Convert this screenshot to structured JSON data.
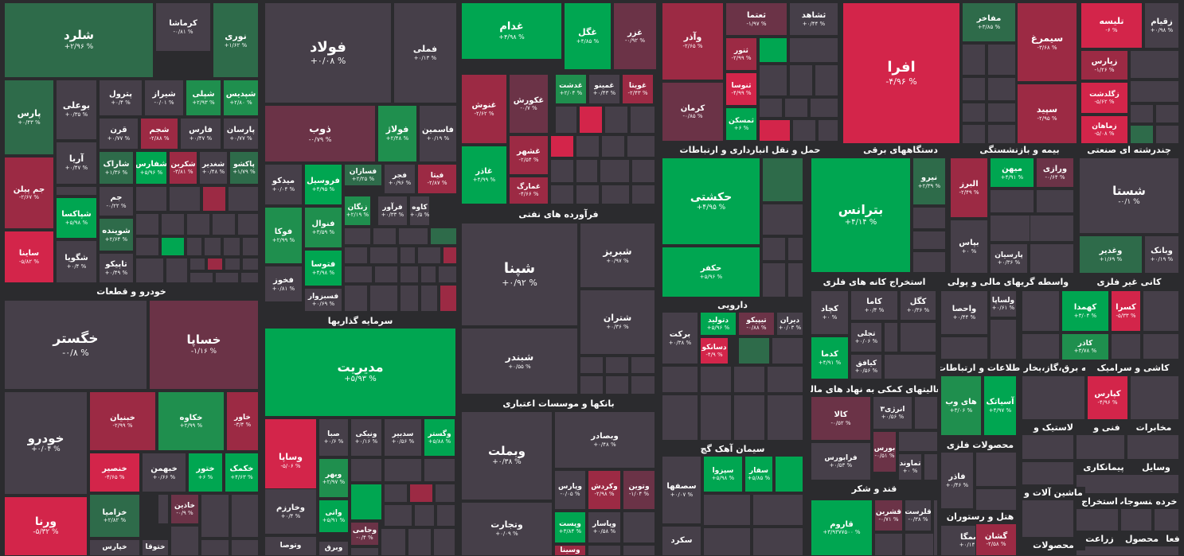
{
  "colors": {
    "neutral": "#463f49",
    "green_strong": "#00a651",
    "green_mid": "#1f8f4e",
    "green_dark": "#2e6b4a",
    "red_strong": "#d3254a",
    "red_mid": "#9c2a44",
    "red_dark": "#6b3347",
    "background": "#2b2b2e"
  },
  "sectors": [
    "خودرو و قطعات",
    "سرمایه گذاریها",
    "فرآورده های نفتی",
    "بانکها و موسسات اعتباری",
    "حمل و نقل انبارداری و ارتباطات",
    "دستگاههای برقی",
    "بیمه و بازنشستگی",
    "چندرشته ای صنعتی",
    "استخراج کانه های فلزی",
    "واسطه گریهای مالی و پولی",
    "کانی غیر فلزی",
    "دارویی",
    "فعالیتهای کمکی به نهاد های مالی",
    "اطلاعات و ارتباطات",
    "عرضه برق،گاز،بخار و آب",
    "کاشی و سرامیک",
    "سیمان آهک گچ",
    "محصولات فلزی",
    "قند و شکر",
    "هتل و رستوران",
    "لاستیک و",
    "فنی و",
    "مخابرات",
    "پیمانکاری",
    "وسایل",
    "ماشین آلات و",
    "استخراج",
    "منسوجات",
    "خرده",
    "محصولات",
    "فعا",
    "محصول",
    "زراعت"
  ],
  "stocks": [
    {
      "name": "شلرد",
      "pct": "+۲/۹۶ %",
      "tone": "green_dark"
    },
    {
      "name": "کرماشا",
      "pct": "-۰/۸۱ %",
      "tone": "neutral"
    },
    {
      "name": "نوری",
      "pct": "+۱/۶۲ %",
      "tone": "green_dark"
    },
    {
      "name": "بوعلی",
      "pct": "+۰/۳۵ %",
      "tone": "neutral"
    },
    {
      "name": "پترول",
      "pct": "+۰/۴ %",
      "tone": "neutral"
    },
    {
      "name": "شپلی",
      "pct": "+۲/۹۳ %",
      "tone": "green_mid"
    },
    {
      "name": "شیراز",
      "pct": "-۰/۰۱ %",
      "tone": "neutral"
    },
    {
      "name": "شپدیس",
      "pct": "+۲/۸۰ %",
      "tone": "green_mid"
    },
    {
      "name": "پارس",
      "pct": "+۰/۴۳ %",
      "tone": "green_dark"
    },
    {
      "name": "قرن",
      "pct": "+۰/۷۷ %",
      "tone": "neutral"
    },
    {
      "name": "شجم",
      "pct": "-۲/۸۸ %",
      "tone": "red_mid"
    },
    {
      "name": "فارس",
      "pct": "+۰/۴۷ %",
      "tone": "neutral"
    },
    {
      "name": "پارسان",
      "pct": "+۰/۷۷ %",
      "tone": "neutral"
    },
    {
      "name": "آریا",
      "pct": "+۰/۴۷ %",
      "tone": "neutral"
    },
    {
      "name": "شاراک",
      "pct": "+۱/۳۶ %",
      "tone": "green_dark"
    },
    {
      "name": "شفارس",
      "pct": "+۵/۹۶ %",
      "tone": "green_strong"
    },
    {
      "name": "شکربن",
      "pct": "-۳/۸۱ %",
      "tone": "red_mid"
    },
    {
      "name": "شغدیر",
      "pct": "+۰/۴۸ %",
      "tone": "neutral"
    },
    {
      "name": "پاکشو",
      "pct": "+۱/۷۹ %",
      "tone": "green_dark"
    },
    {
      "name": "جم پیلن",
      "pct": "-۲/۶۷ %",
      "tone": "red_mid"
    },
    {
      "name": "جم",
      "pct": "-۰/۲۲ %",
      "tone": "neutral"
    },
    {
      "name": "شپاکسا",
      "pct": "+۵/۹۸ %",
      "tone": "green_strong"
    },
    {
      "name": "شوینده",
      "pct": "+۲/۶۴ %",
      "tone": "green_dark"
    },
    {
      "name": "ساینا",
      "pct": "-۵/۸۲ %",
      "tone": "red_strong"
    },
    {
      "name": "شگویا",
      "pct": "+۰/۴ %",
      "tone": "neutral"
    },
    {
      "name": "تاپیکو",
      "pct": "+۰/۴۹ %",
      "tone": "neutral"
    },
    {
      "name": "فولاد",
      "pct": "+۰/۰۸ %",
      "tone": "neutral"
    },
    {
      "name": "فملی",
      "pct": "+۰/۱۳ %",
      "tone": "neutral"
    },
    {
      "name": "ذوب",
      "pct": "-۰/۷۹ %",
      "tone": "red_dark"
    },
    {
      "name": "فولاژ",
      "pct": "+۲/۴۸ %",
      "tone": "green_mid"
    },
    {
      "name": "فاسمین",
      "pct": "+۰/۱۹ %",
      "tone": "neutral"
    },
    {
      "name": "میدکو",
      "pct": "+۰/۰۴ %",
      "tone": "neutral"
    },
    {
      "name": "فروسیل",
      "pct": "+۴/۹۵ %",
      "tone": "green_strong"
    },
    {
      "name": "فسازان",
      "pct": "+۲/۲۵ %",
      "tone": "green_dark"
    },
    {
      "name": "فجر",
      "pct": "+۰/۹۶ %",
      "tone": "neutral"
    },
    {
      "name": "فیتا",
      "pct": "-۲/۸۷ %",
      "tone": "red_mid"
    },
    {
      "name": "زنگان",
      "pct": "+۲/۱۹ %",
      "tone": "green_mid"
    },
    {
      "name": "فرآور",
      "pct": "+۰/۳۳ %",
      "tone": "neutral"
    },
    {
      "name": "کاوه",
      "pct": "+۰/۵ %",
      "tone": "neutral"
    },
    {
      "name": "فوکا",
      "pct": "+۲/۹۹ %",
      "tone": "green_mid"
    },
    {
      "name": "فنوال",
      "pct": "+۳/۵۹ %",
      "tone": "green_mid"
    },
    {
      "name": "فتوسا",
      "pct": "+۴/۹۸ %",
      "tone": "green_strong"
    },
    {
      "name": "فخوز",
      "pct": "+۰/۸۱ %",
      "tone": "neutral"
    },
    {
      "name": "فسبزوار",
      "pct": "+۰/۶۹ %",
      "tone": "neutral"
    },
    {
      "name": "غدام",
      "pct": "+۴/۹۸ %",
      "tone": "green_strong"
    },
    {
      "name": "غگل",
      "pct": "+۴/۸۵ %",
      "tone": "green_strong"
    },
    {
      "name": "غزر",
      "pct": "-۰/۹۲ %",
      "tone": "red_dark"
    },
    {
      "name": "غنوش",
      "pct": "-۲/۶۲ %",
      "tone": "red_mid"
    },
    {
      "name": "غکورش",
      "pct": "-۰/۷ %",
      "tone": "red_dark"
    },
    {
      "name": "غدشت",
      "pct": "+۲/۰۴ %",
      "tone": "green_mid"
    },
    {
      "name": "غمینو",
      "pct": "+۰/۴۳ %",
      "tone": "neutral"
    },
    {
      "name": "غویتا",
      "pct": "-۲/۴۳ %",
      "tone": "red_mid"
    },
    {
      "name": "غشهر",
      "pct": "-۲/۵۴ %",
      "tone": "red_mid"
    },
    {
      "name": "غاذر",
      "pct": "+۴/۹۹ %",
      "tone": "green_strong"
    },
    {
      "name": "غمارگ",
      "pct": "-۴/۶۶ %",
      "tone": "red_mid"
    },
    {
      "name": "وآذر",
      "pct": "-۲/۶۵ %",
      "tone": "red_mid"
    },
    {
      "name": "ثعتما",
      "pct": "-۱/۹۷ %",
      "tone": "red_dark"
    },
    {
      "name": "ثشاهد",
      "pct": "+۰/۴۴ %",
      "tone": "neutral"
    },
    {
      "name": "ثنور",
      "pct": "-۲/۹۹ %",
      "tone": "red_mid"
    },
    {
      "name": "ثنوسا",
      "pct": "-۴/۹۹ %",
      "tone": "red_strong"
    },
    {
      "name": "کرمان",
      "pct": "-۰/۸۵ %",
      "tone": "red_dark"
    },
    {
      "name": "ثمسکن",
      "pct": "+۶ %",
      "tone": "green_strong"
    },
    {
      "name": "افرا",
      "pct": "-۴/۹۶ %",
      "tone": "red_strong"
    },
    {
      "name": "مفاخر",
      "pct": "+۳/۸۵ %",
      "tone": "green_dark"
    },
    {
      "name": "سیمرغ",
      "pct": "-۳/۶۸ %",
      "tone": "red_mid"
    },
    {
      "name": "سپید",
      "pct": "-۲/۹۵ %",
      "tone": "red_mid"
    },
    {
      "name": "تلیسه",
      "pct": "-۶ %",
      "tone": "red_strong"
    },
    {
      "name": "زقیام",
      "pct": "+۰/۹۸ %",
      "tone": "neutral"
    },
    {
      "name": "زپارس",
      "pct": "-۱/۲۶ %",
      "tone": "red_mid"
    },
    {
      "name": "زگلدشت",
      "pct": "-۵/۶۲ %",
      "tone": "red_strong"
    },
    {
      "name": "زماهان",
      "pct": "-۵/۰۸ %",
      "tone": "red_strong"
    },
    {
      "name": "خگستر",
      "pct": "-۰/۸ %",
      "tone": "neutral"
    },
    {
      "name": "خساپا",
      "pct": "-۱/۱۶ %",
      "tone": "red_dark"
    },
    {
      "name": "خودرو",
      "pct": "+۰/۰۴ %",
      "tone": "neutral"
    },
    {
      "name": "خبنیان",
      "pct": "-۲/۹۹ %",
      "tone": "red_mid"
    },
    {
      "name": "خکاوه",
      "pct": "+۲/۹۹ %",
      "tone": "green_mid"
    },
    {
      "name": "خاور",
      "pct": "-۳/۴ %",
      "tone": "red_mid"
    },
    {
      "name": "خنصیر",
      "pct": "-۴/۶۵ %",
      "tone": "red_strong"
    },
    {
      "name": "خبهمن",
      "pct": "+۰/۶۶ %",
      "tone": "neutral"
    },
    {
      "name": "ختور",
      "pct": "+۶ %",
      "tone": "green_strong"
    },
    {
      "name": "خکمک",
      "pct": "+۴/۶۳ %",
      "tone": "green_strong"
    },
    {
      "name": "ورنا",
      "pct": "-۵/۳۲ %",
      "tone": "red_strong"
    },
    {
      "name": "خزامیا",
      "pct": "+۲/۸۲ %",
      "tone": "green_dark"
    },
    {
      "name": "خاذین",
      "pct": "-۰/۹ %",
      "tone": "red_dark"
    },
    {
      "name": "خپارس",
      "pct": "",
      "tone": "neutral"
    },
    {
      "name": "ختوقا",
      "pct": "",
      "tone": "neutral"
    },
    {
      "name": "مدیریت",
      "pct": "+۵/۹۳ %",
      "tone": "green_strong"
    },
    {
      "name": "وساپا",
      "pct": "-۵/۰۶ %",
      "tone": "red_strong"
    },
    {
      "name": "صبا",
      "pct": "+۰/۶ %",
      "tone": "neutral"
    },
    {
      "name": "ونیکی",
      "pct": "+۰/۱۶ %",
      "tone": "neutral"
    },
    {
      "name": "سدبیر",
      "pct": "+۰/۵۶ %",
      "tone": "neutral"
    },
    {
      "name": "وگستر",
      "pct": "+۵/۸۸ %",
      "tone": "green_strong"
    },
    {
      "name": "وبهر",
      "pct": "+۲/۹۷ %",
      "tone": "green_mid"
    },
    {
      "name": "وخارزم",
      "pct": "+۰/۴ %",
      "tone": "neutral"
    },
    {
      "name": "واتی",
      "pct": "+۵/۹۱ %",
      "tone": "green_strong"
    },
    {
      "name": "وجامی",
      "pct": "-۰/۴ %",
      "tone": "red_dark"
    },
    {
      "name": "وتوصا",
      "pct": "",
      "tone": "neutral"
    },
    {
      "name": "وبرق",
      "pct": "",
      "tone": "neutral"
    },
    {
      "name": "شپنا",
      "pct": "+۰/۹۲ %",
      "tone": "neutral"
    },
    {
      "name": "شبریز",
      "pct": "+۰/۹۷ %",
      "tone": "neutral"
    },
    {
      "name": "شتران",
      "pct": "+۰/۳۶ %",
      "tone": "neutral"
    },
    {
      "name": "شبندر",
      "pct": "+۰/۵۵ %",
      "tone": "neutral"
    },
    {
      "name": "وبملت",
      "pct": "+۰/۳۸ %",
      "tone": "neutral"
    },
    {
      "name": "وبصادر",
      "pct": "+۰/۴۸ %",
      "tone": "neutral"
    },
    {
      "name": "وپارس",
      "pct": "-۰/۰۵ %",
      "tone": "neutral"
    },
    {
      "name": "وکردش",
      "pct": "-۲/۹۸ %",
      "tone": "red_mid"
    },
    {
      "name": "وتوین",
      "pct": "-۱/۰۴ %",
      "tone": "red_dark"
    },
    {
      "name": "وتجارت",
      "pct": "+۰/۰۹ %",
      "tone": "neutral"
    },
    {
      "name": "وپست",
      "pct": "+۳/۸۴ %",
      "tone": "green_strong"
    },
    {
      "name": "وپاسار",
      "pct": "+۰/۵۸ %",
      "tone": "neutral"
    },
    {
      "name": "وسینا",
      "pct": "",
      "tone": "red_mid"
    },
    {
      "name": "حکشتی",
      "pct": "+۴/۹۵ %",
      "tone": "green_strong"
    },
    {
      "name": "حکفر",
      "pct": "+۵/۹۶ %",
      "tone": "green_strong"
    },
    {
      "name": "بترانس",
      "pct": "+۴/۱۴ %",
      "tone": "green_strong"
    },
    {
      "name": "نیرو",
      "pct": "+۲/۳۹ %",
      "tone": "green_dark"
    },
    {
      "name": "البرز",
      "pct": "-۲/۴۹ %",
      "tone": "red_mid"
    },
    {
      "name": "میهن",
      "pct": "+۴/۹۱ %",
      "tone": "green_strong"
    },
    {
      "name": "ورازی",
      "pct": "-۰/۶۴ %",
      "tone": "red_dark"
    },
    {
      "name": "بپاس",
      "pct": "+۰ %",
      "tone": "neutral"
    },
    {
      "name": "پارسیان",
      "pct": "+۰/۳۶ %",
      "tone": "neutral"
    },
    {
      "name": "شستا",
      "pct": "-۰/۱ %",
      "tone": "neutral"
    },
    {
      "name": "وغدیر",
      "pct": "+۱/۶۹ %",
      "tone": "green_dark"
    },
    {
      "name": "وبانک",
      "pct": "+۰/۱۹ %",
      "tone": "neutral"
    },
    {
      "name": "کچاد",
      "pct": "+۰ %",
      "tone": "neutral"
    },
    {
      "name": "کاما",
      "pct": "+۰/۴ %",
      "tone": "neutral"
    },
    {
      "name": "کگل",
      "pct": "+۰/۳۶ %",
      "tone": "neutral"
    },
    {
      "name": "تجلی",
      "pct": "+۰/۰۶ %",
      "tone": "neutral"
    },
    {
      "name": "کدما",
      "pct": "+۴/۹۱ %",
      "tone": "green_strong"
    },
    {
      "name": "کیافق",
      "pct": "+۰/۵۶ %",
      "tone": "neutral"
    },
    {
      "name": "واحصا",
      "pct": "+۰/۴۴ %",
      "tone": "neutral"
    },
    {
      "name": "ولساپا",
      "pct": "+۰/۶۱ %",
      "tone": "neutral"
    },
    {
      "name": "کهمدا",
      "pct": "+۳/۰۴ %",
      "tone": "green_strong"
    },
    {
      "name": "کسرا",
      "pct": "-۵/۳۳ %",
      "tone": "red_strong"
    },
    {
      "name": "کاذر",
      "pct": "+۳/۷۸ %",
      "tone": "green_mid"
    },
    {
      "name": "برکت",
      "pct": "+۰/۳۸ %",
      "tone": "neutral"
    },
    {
      "name": "دتولید",
      "pct": "+۵/۹۶ %",
      "tone": "green_strong"
    },
    {
      "name": "تیپیکو",
      "pct": "-۰/۸۸ %",
      "tone": "red_dark"
    },
    {
      "name": "دیران",
      "pct": "+۰/۰۳ %",
      "tone": "neutral"
    },
    {
      "name": "دسانکو",
      "pct": "-۴/۹ %",
      "tone": "red_strong"
    },
    {
      "name": "کالا",
      "pct": "-۰/۵۲ %",
      "tone": "red_dark"
    },
    {
      "name": "انرژی۳",
      "pct": "+۰/۵۶ %",
      "tone": "neutral"
    },
    {
      "name": "بورس",
      "pct": "-۰/۵۱ %",
      "tone": "red_dark"
    },
    {
      "name": "فرابورس",
      "pct": "+۰/۵۳ %",
      "tone": "neutral"
    },
    {
      "name": "تماوند",
      "pct": "+۰ %",
      "tone": "neutral"
    },
    {
      "name": "های وب",
      "pct": "+۳/۰۶ %",
      "tone": "green_mid"
    },
    {
      "name": "آسیاتک",
      "pct": "+۴/۹۷ %",
      "tone": "green_strong"
    },
    {
      "name": "کپارس",
      "pct": "-۴/۹۶ %",
      "tone": "red_strong"
    },
    {
      "name": "سفار",
      "pct": "+۵/۸۵ %",
      "tone": "green_strong"
    },
    {
      "name": "سپزوا",
      "pct": "+۵/۹۸ %",
      "tone": "green_strong"
    },
    {
      "name": "سصفها",
      "pct": "+۰/۰۷ %",
      "tone": "neutral"
    },
    {
      "name": "سکرد",
      "pct": "",
      "tone": "neutral"
    },
    {
      "name": "قاروم",
      "pct": "+۳/۹۳۷۷۵۰۰ %",
      "tone": "green_strong"
    },
    {
      "name": "قشرین",
      "pct": "-۰/۷۱ %",
      "tone": "red_dark"
    },
    {
      "name": "قلرست",
      "pct": "-۰/۳۸ %",
      "tone": "neutral"
    },
    {
      "name": "فاذر",
      "pct": "+۰/۴۶ %",
      "tone": "neutral"
    },
    {
      "name": "سمگا",
      "pct": "+۰/۱۴ %",
      "tone": "neutral"
    },
    {
      "name": "گشان",
      "pct": "-۲/۵۸ %",
      "tone": "red_mid"
    }
  ]
}
